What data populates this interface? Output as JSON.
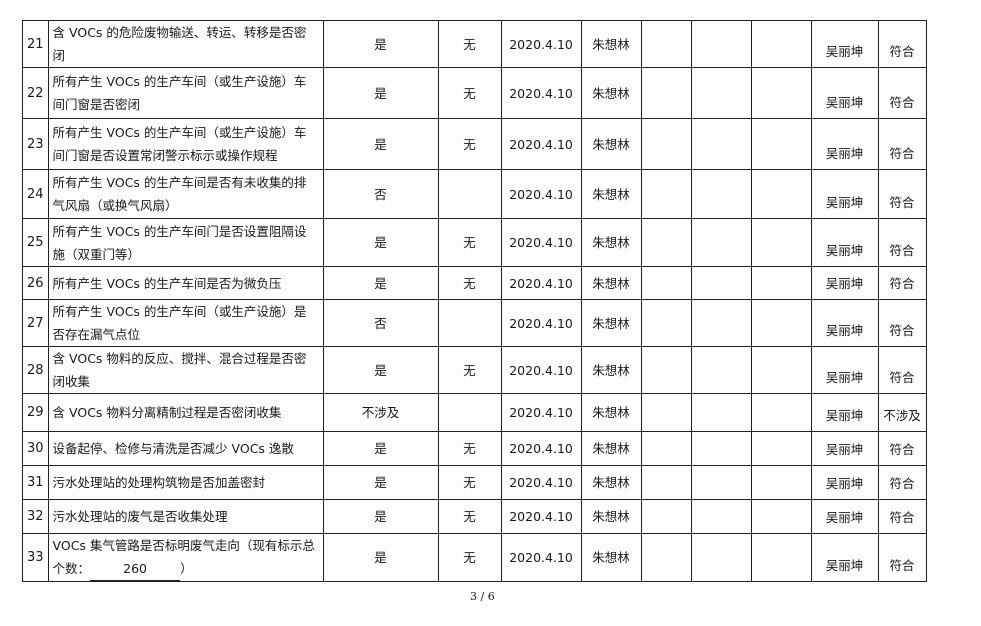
{
  "rows": [
    {
      "no": "21",
      "item": "含 VOCs 的危险废物输送、转运、转移是否密闭",
      "result": "是",
      "remark": "无",
      "date": "2020.4.10",
      "checker": "朱想林",
      "inspector": "吴丽坤",
      "conclusion": "符合"
    },
    {
      "no": "22",
      "item": "所有产生 VOCs 的生产车间（或生产设施）车间门窗是否密闭",
      "result": "是",
      "remark": "无",
      "date": "2020.4.10",
      "checker": "朱想林",
      "inspector": "吴丽坤",
      "conclusion": "符合"
    },
    {
      "no": "23",
      "item": "所有产生 VOCs 的生产车间（或生产设施）车间门窗是否设置常闭警示标示或操作规程",
      "result": "是",
      "remark": "无",
      "date": "2020.4.10",
      "checker": "朱想林",
      "inspector": "吴丽坤",
      "conclusion": "符合"
    },
    {
      "no": "24",
      "item": "所有产生 VOCs 的生产车间是否有未收集的排气风扇（或换气风扇）",
      "result": "否",
      "remark": "",
      "date": "2020.4.10",
      "checker": "朱想林",
      "inspector": "吴丽坤",
      "conclusion": "符合"
    },
    {
      "no": "25",
      "item": "所有产生 VOCs 的生产车间门是否设置阻隔设施（双重门等）",
      "result": "是",
      "remark": "无",
      "date": "2020.4.10",
      "checker": "朱想林",
      "inspector": "吴丽坤",
      "conclusion": "符合"
    },
    {
      "no": "26",
      "item": "所有产生 VOCs 的生产车间是否为微负压",
      "result": "是",
      "remark": "无",
      "date": "2020.4.10",
      "checker": "朱想林",
      "inspector": "吴丽坤",
      "conclusion": "符合"
    },
    {
      "no": "27",
      "item": "所有产生 VOCs 的生产车间（或生产设施）是否存在漏气点位",
      "result": "否",
      "remark": "",
      "date": "2020.4.10",
      "checker": "朱想林",
      "inspector": "吴丽坤",
      "conclusion": "符合"
    },
    {
      "no": "28",
      "item": "含 VOCs 物料的反应、搅拌、混合过程是否密闭收集",
      "result": "是",
      "remark": "无",
      "date": "2020.4.10",
      "checker": "朱想林",
      "inspector": "吴丽坤",
      "conclusion": "符合"
    },
    {
      "no": "29",
      "item": "含 VOCs 物料分离精制过程是否密闭收集",
      "result": "不涉及",
      "remark": "",
      "date": "2020.4.10",
      "checker": "朱想林",
      "inspector": "吴丽坤",
      "conclusion": "不涉及"
    },
    {
      "no": "30",
      "item": "设备起停、检修与清洗是否减少 VOCs 逸散",
      "result": "是",
      "remark": "无",
      "date": "2020.4.10",
      "checker": "朱想林",
      "inspector": "吴丽坤",
      "conclusion": "符合"
    },
    {
      "no": "31",
      "item": "污水处理站的处理构筑物是否加盖密封",
      "result": "是",
      "remark": "无",
      "date": "2020.4.10",
      "checker": "朱想林",
      "inspector": "吴丽坤",
      "conclusion": "符合"
    },
    {
      "no": "32",
      "item": "污水处理站的废气是否收集处理",
      "result": "是",
      "remark": "无",
      "date": "2020.4.10",
      "checker": "朱想林",
      "inspector": "吴丽坤",
      "conclusion": "符合"
    },
    {
      "no": "33",
      "item": "VOCs 集气管路是否标明废气走向（现有标示总个数：",
      "item_value": "260",
      "item_end": "）",
      "result": "是",
      "remark": "无",
      "date": "2020.4.10",
      "checker": "朱想林",
      "inspector": "吴丽坤",
      "conclusion": "符合"
    }
  ],
  "page": "3 / 6"
}
